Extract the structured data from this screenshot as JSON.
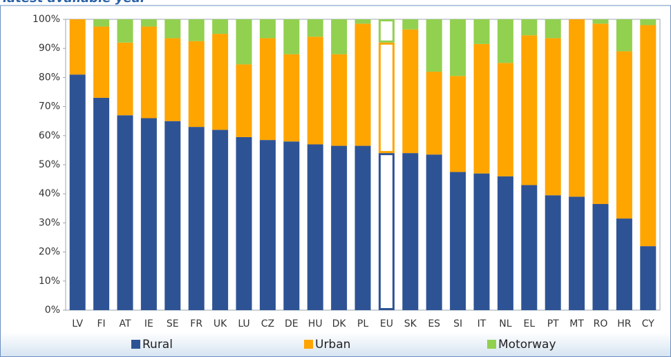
{
  "chart_data": {
    "type": "stacked_bar",
    "title": "latest available year",
    "categories": [
      "LV",
      "FI",
      "AT",
      "IE",
      "SE",
      "FR",
      "UK",
      "LU",
      "CZ",
      "DE",
      "HU",
      "DK",
      "PL",
      "EU",
      "SK",
      "ES",
      "SI",
      "IT",
      "NL",
      "EL",
      "PT",
      "MT",
      "RO",
      "HR",
      "CY"
    ],
    "series": [
      {
        "name": "Rural",
        "color": "#2e5395",
        "values": [
          81,
          73,
          67,
          66,
          65,
          63,
          62,
          59.5,
          58.5,
          58,
          57,
          56.5,
          56.5,
          54,
          54,
          53.5,
          47.5,
          47,
          46,
          43,
          39.5,
          39,
          36.5,
          31.5,
          22
        ]
      },
      {
        "name": "Urban",
        "color": "#ffa500",
        "values": [
          19,
          24.5,
          25,
          31.5,
          28.5,
          29.5,
          33,
          25,
          35,
          30,
          37,
          31.5,
          42,
          38,
          42.5,
          28.5,
          33,
          44.5,
          39,
          51.5,
          54,
          61,
          62,
          57.5,
          76
        ]
      },
      {
        "name": "Motorway",
        "color": "#92d050",
        "values": [
          0,
          2.5,
          8,
          2.5,
          6.5,
          7.5,
          5,
          15.5,
          6.5,
          12,
          6,
          12,
          1.5,
          8,
          3.5,
          18,
          19.5,
          8.5,
          15,
          5.5,
          6.5,
          0,
          1.5,
          11,
          2
        ]
      }
    ],
    "highlight": 13,
    "ylim": [
      0,
      100
    ],
    "yticks": [
      {
        "value": 0,
        "label": "0%"
      },
      {
        "value": 10,
        "label": "10%"
      },
      {
        "value": 20,
        "label": "20%"
      },
      {
        "value": 30,
        "label": "30%"
      },
      {
        "value": 40,
        "label": "40%"
      },
      {
        "value": 50,
        "label": "50%"
      },
      {
        "value": 60,
        "label": "60%"
      },
      {
        "value": 70,
        "label": "70%"
      },
      {
        "value": 80,
        "label": "80%"
      },
      {
        "value": 90,
        "label": "90%"
      },
      {
        "value": 100,
        "label": "100%"
      }
    ],
    "grid": false
  }
}
